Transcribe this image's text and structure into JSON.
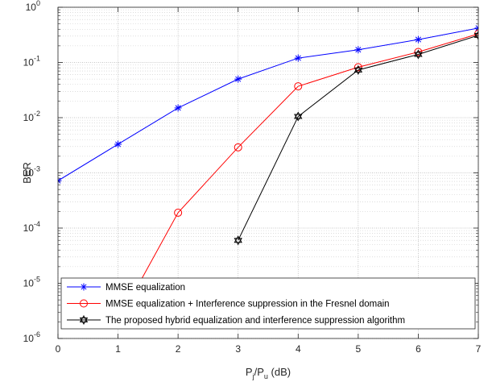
{
  "chart_data": {
    "type": "line",
    "xlabel": {
      "base": "P",
      "sub1": "j",
      "mid": "/P",
      "sub2": "u",
      "tail": " (dB)"
    },
    "ylabel": "BER",
    "y_scale": "log",
    "xlim": [
      0,
      7
    ],
    "ylim": [
      1e-06,
      1
    ],
    "x_ticks": [
      0,
      1,
      2,
      3,
      4,
      5,
      6,
      7
    ],
    "y_ticks": [
      {
        "value": 1e-06,
        "base": "10",
        "exp": "-6"
      },
      {
        "value": 1e-05,
        "base": "10",
        "exp": "-5"
      },
      {
        "value": 0.0001,
        "base": "10",
        "exp": "-4"
      },
      {
        "value": 0.001,
        "base": "10",
        "exp": "-3"
      },
      {
        "value": 0.01,
        "base": "10",
        "exp": "-2"
      },
      {
        "value": 0.1,
        "base": "10",
        "exp": "-1"
      },
      {
        "value": 1,
        "base": "10",
        "exp": "0"
      }
    ],
    "grid": "major and minor, dotted",
    "legend_position": "bottom-right",
    "series": [
      {
        "name": "MMSE equalization",
        "color": "#0000ff",
        "marker": "asterisk",
        "points": [
          [
            0,
            0.00072
          ],
          [
            1,
            0.0033
          ],
          [
            2,
            0.015
          ],
          [
            3,
            0.05
          ],
          [
            4,
            0.12
          ],
          [
            5,
            0.17
          ],
          [
            6,
            0.26
          ],
          [
            7,
            0.42
          ]
        ]
      },
      {
        "name": "MMSE equalization + Interference suppression in the Fresnel domain",
        "color": "#ff0000",
        "marker": "circle",
        "points": [
          [
            1,
            2e-06
          ],
          [
            2,
            0.00019
          ],
          [
            3,
            0.0029
          ],
          [
            4,
            0.037
          ],
          [
            5,
            0.082
          ],
          [
            6,
            0.155
          ],
          [
            7,
            0.33
          ]
        ]
      },
      {
        "name": "The proposed hybrid equalization and interference suppression algorithm",
        "color": "#000000",
        "marker": "hexagram",
        "points": [
          [
            3,
            6e-05
          ],
          [
            4,
            0.0105
          ],
          [
            5,
            0.073
          ],
          [
            6,
            0.14
          ],
          [
            7,
            0.31
          ]
        ]
      }
    ]
  }
}
